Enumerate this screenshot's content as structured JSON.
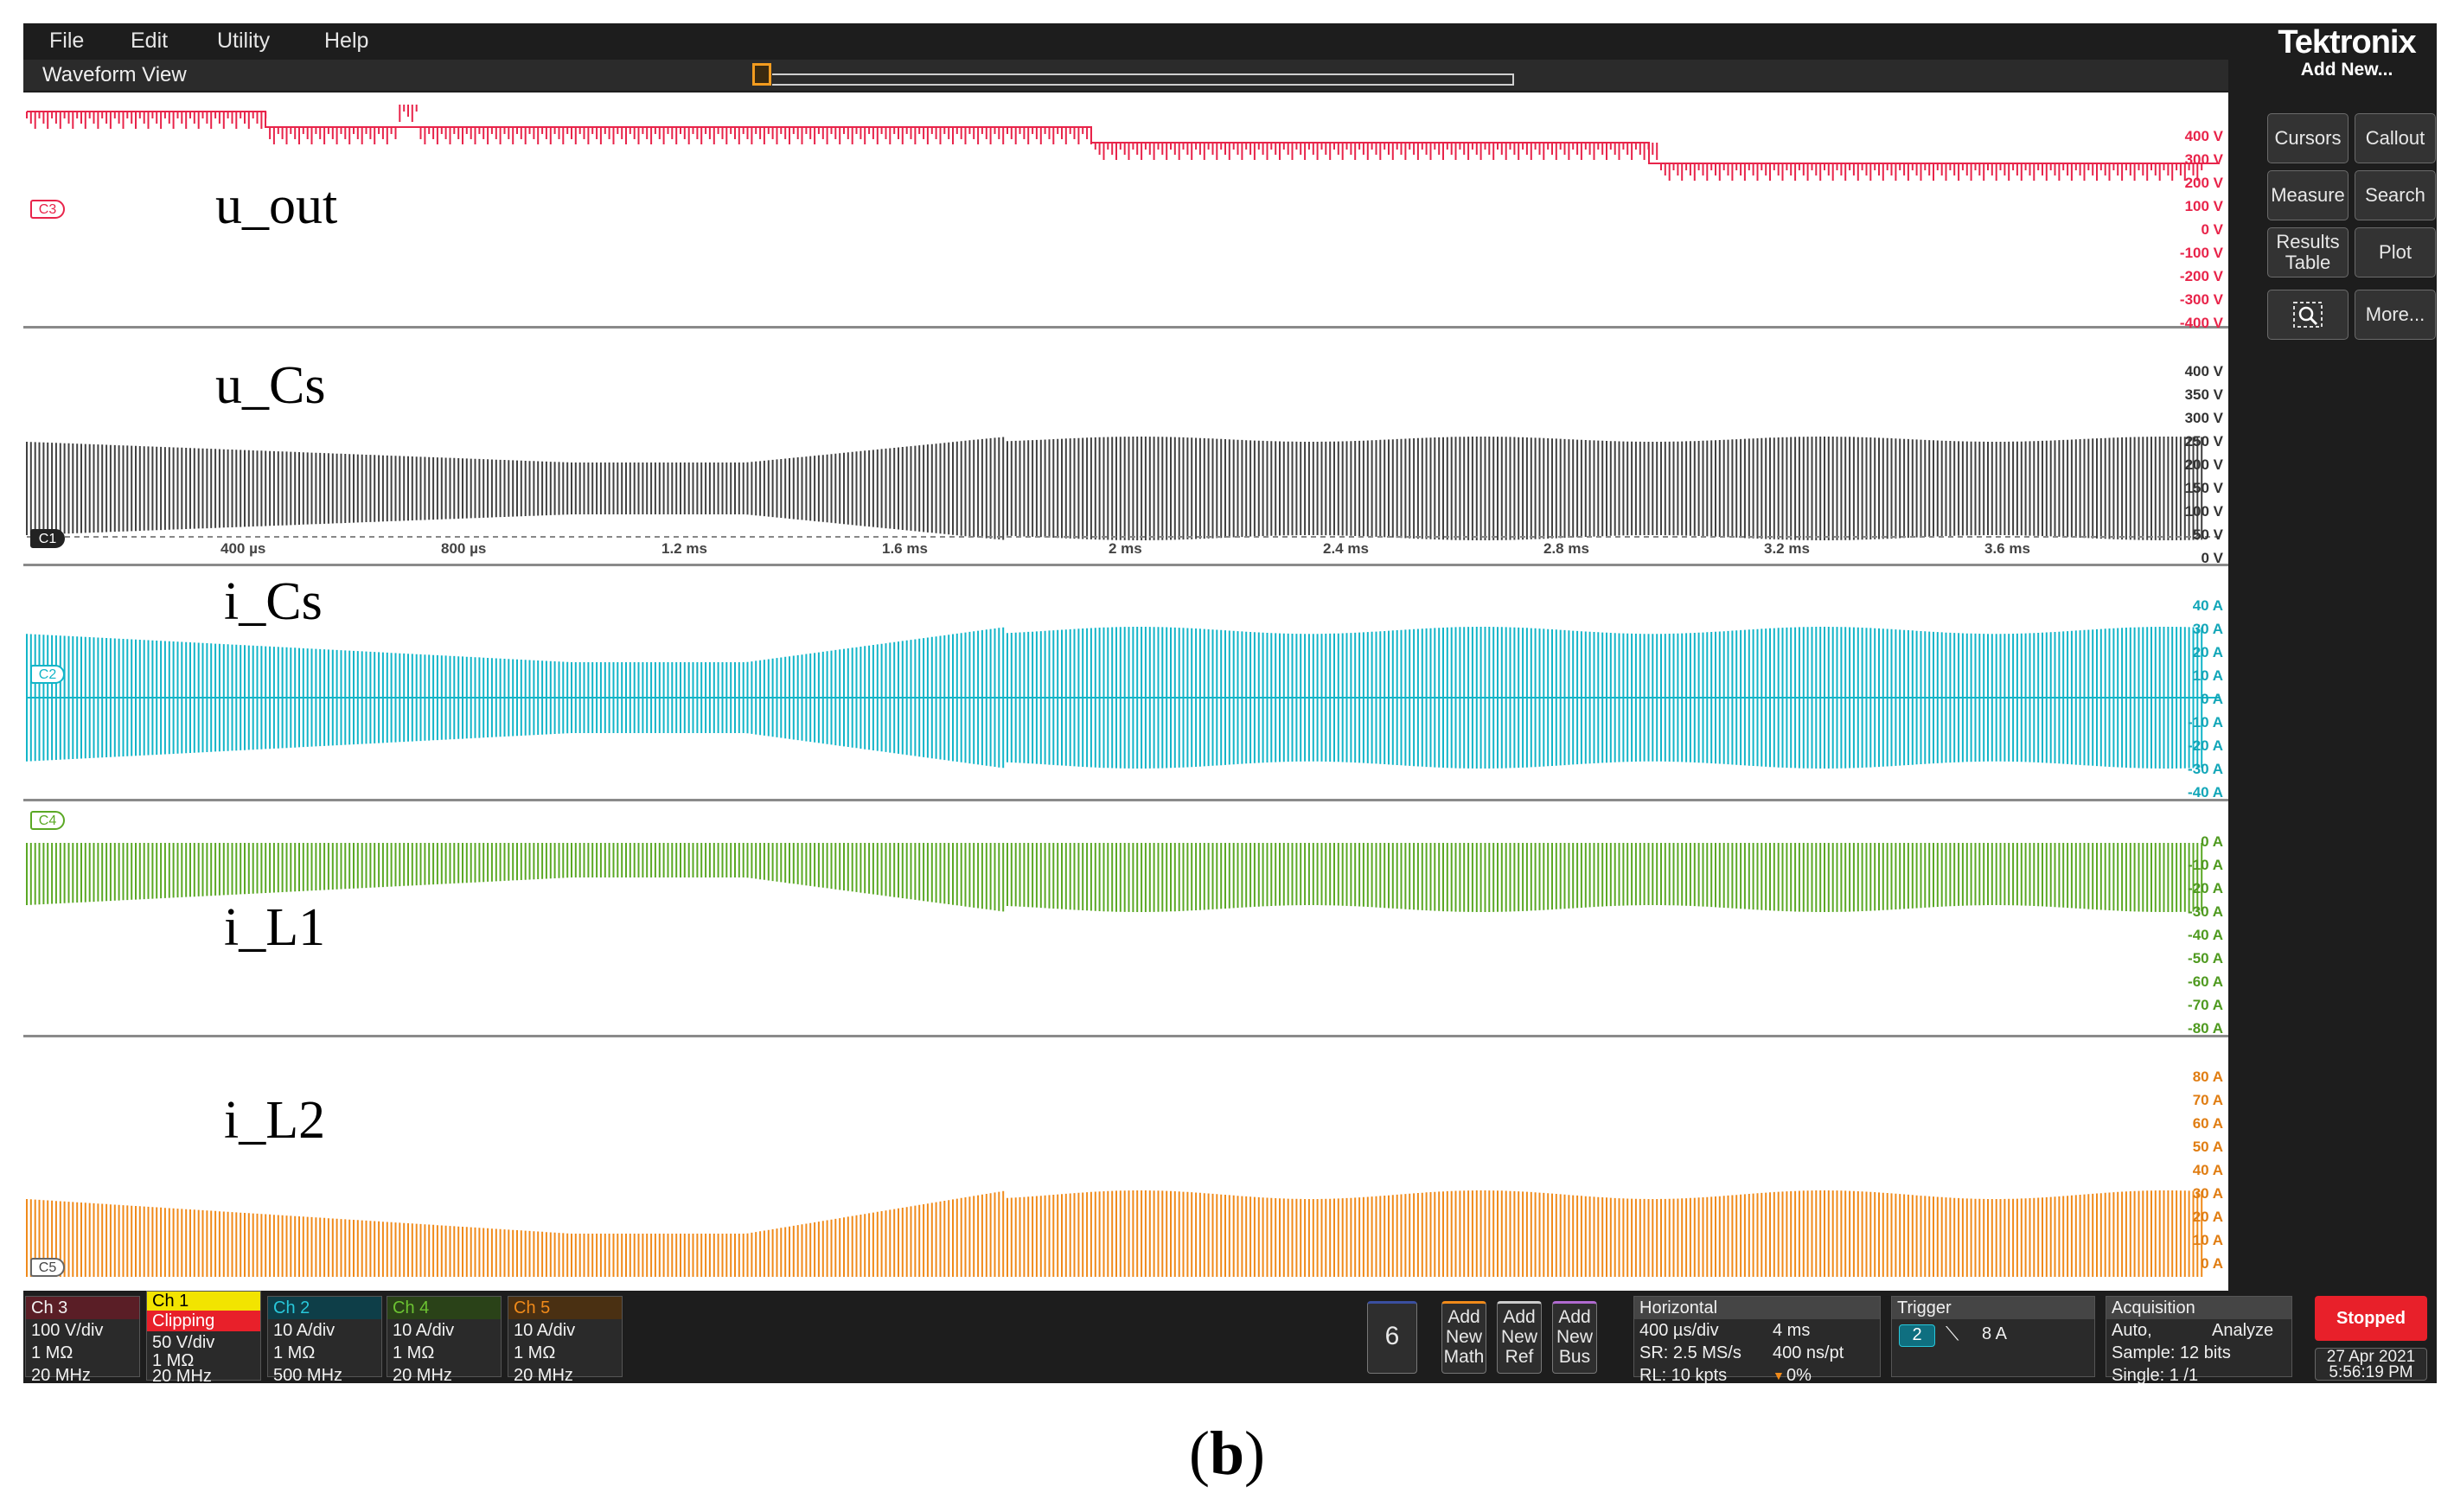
{
  "menu": {
    "items": [
      "File",
      "Edit",
      "Utility",
      "Help"
    ]
  },
  "brand": {
    "name": "Tektronix",
    "add_new": "Add New..."
  },
  "waveform_view": {
    "title": "Waveform View"
  },
  "right_panel": {
    "buttons": [
      "Cursors",
      "Callout",
      "Measure",
      "Search",
      "Results Table",
      "Plot",
      "More..."
    ],
    "icon": "zoom-search-icon"
  },
  "traces": [
    {
      "label": "u_out",
      "channel": "C3",
      "color": "#e8244a",
      "scale": [
        "400 V",
        "300 V",
        "200 V",
        "100 V",
        "0 V",
        "-100 V",
        "-200 V",
        "-300 V",
        "-400 V"
      ]
    },
    {
      "label": "u_Cs",
      "channel": "C1",
      "color": "#404040",
      "scale": [
        "400 V",
        "350 V",
        "300 V",
        "250 V",
        "200 V",
        "150 V",
        "100 V",
        "50 V",
        "0 V"
      ]
    },
    {
      "label": "i_Cs",
      "channel": "C2",
      "color": "#12b5c8",
      "scale": [
        "40 A",
        "30 A",
        "20 A",
        "10 A",
        "0 A",
        "-10 A",
        "-20 A",
        "-30 A",
        "-40 A"
      ]
    },
    {
      "label": "i_L1",
      "channel": "C4",
      "color": "#5aa824",
      "scale": [
        "0 A",
        "-10 A",
        "-20 A",
        "-30 A",
        "-40 A",
        "-50 A",
        "-60 A",
        "-70 A",
        "-80 A"
      ]
    },
    {
      "label": "i_L2",
      "channel": "C5",
      "color": "#f08a1a",
      "scale": [
        "80 A",
        "70 A",
        "60 A",
        "50 A",
        "40 A",
        "30 A",
        "20 A",
        "10 A",
        "0 A"
      ]
    }
  ],
  "time_axis": {
    "ticks": [
      "400 µs",
      "800 µs",
      "1.2 ms",
      "1.6 ms",
      "2 ms",
      "2.4 ms",
      "2.8 ms",
      "3.2 ms",
      "3.6 ms"
    ]
  },
  "channels": [
    {
      "name": "Ch 3",
      "color": "#e8244a",
      "lines": [
        "100 V/div",
        "1 MΩ",
        "20 MHz"
      ]
    },
    {
      "name": "Ch 1",
      "color": "#f2e400",
      "warning": "Clipping",
      "lines": [
        "50 V/div",
        "1 MΩ",
        "20 MHz"
      ]
    },
    {
      "name": "Ch 2",
      "color": "#12b5c8",
      "lines": [
        "10 A/div",
        "1 MΩ",
        "500 MHz"
      ]
    },
    {
      "name": "Ch 4",
      "color": "#5aa824",
      "lines": [
        "10 A/div",
        "1 MΩ",
        "20 MHz"
      ]
    },
    {
      "name": "Ch 5",
      "color": "#f08a1a",
      "lines": [
        "10 A/div",
        "1 MΩ",
        "20 MHz"
      ]
    }
  ],
  "channel_count_button": "6",
  "add_buttons": [
    {
      "lines": [
        "Add",
        "New",
        "Math"
      ],
      "color": "#f08a1a"
    },
    {
      "lines": [
        "Add",
        "New",
        "Ref"
      ],
      "color": "#cccccc"
    },
    {
      "lines": [
        "Add",
        "New",
        "Bus"
      ],
      "color": "#b06ad0"
    }
  ],
  "horizontal": {
    "title": "Horizontal",
    "scale": "400 µs/div",
    "record_time": "4 ms",
    "sample_rate": "SR: 2.5 MS/s",
    "resolution": "400 ns/pt",
    "record_length": "RL: 10 kpts",
    "position": "0%"
  },
  "trigger": {
    "title": "Trigger",
    "source": "2",
    "level": "8 A"
  },
  "acquisition": {
    "title": "Acquisition",
    "mode": "Auto,",
    "analyze": "Analyze",
    "sample": "Sample: 12 bits",
    "single": "Single: 1 /1"
  },
  "run_state": {
    "label": "Stopped",
    "color": "#e8202a"
  },
  "datetime": {
    "date": "27 Apr 2021",
    "time": "5:56:19 PM"
  },
  "caption": {
    "prefix": "(",
    "bold": "b",
    "suffix": ")"
  }
}
